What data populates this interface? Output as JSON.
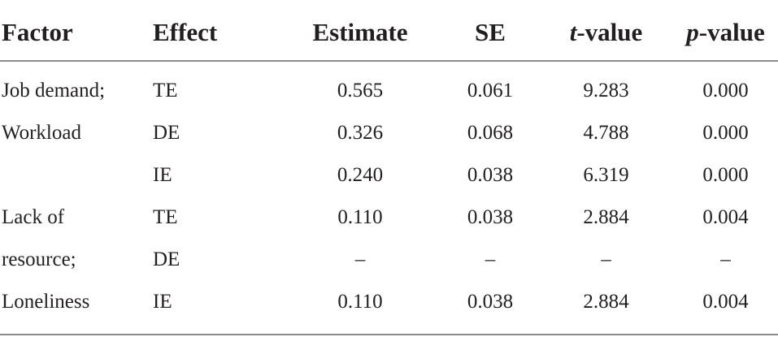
{
  "table": {
    "headers": {
      "factor": "Factor",
      "effect": "Effect",
      "estimate": "Estimate",
      "se": "SE",
      "t_italic": "t",
      "t_rest": "-value",
      "p_italic": "p",
      "p_rest": "-value"
    },
    "rows": [
      {
        "factor": "Job demand;",
        "effect": "TE",
        "estimate": "0.565",
        "se": "0.061",
        "t": "9.283",
        "p": "0.000"
      },
      {
        "factor": "Workload",
        "effect": "DE",
        "estimate": "0.326",
        "se": "0.068",
        "t": "4.788",
        "p": "0.000"
      },
      {
        "factor": "",
        "effect": "IE",
        "estimate": "0.240",
        "se": "0.038",
        "t": "6.319",
        "p": "0.000"
      },
      {
        "factor": "Lack of",
        "effect": "TE",
        "estimate": "0.110",
        "se": "0.038",
        "t": "2.884",
        "p": "0.004"
      },
      {
        "factor": "resource;",
        "effect": "DE",
        "estimate": "–",
        "se": "–",
        "t": "–",
        "p": "–"
      },
      {
        "factor": "Loneliness",
        "effect": "IE",
        "estimate": "0.110",
        "se": "0.038",
        "t": "2.884",
        "p": "0.004"
      }
    ]
  }
}
